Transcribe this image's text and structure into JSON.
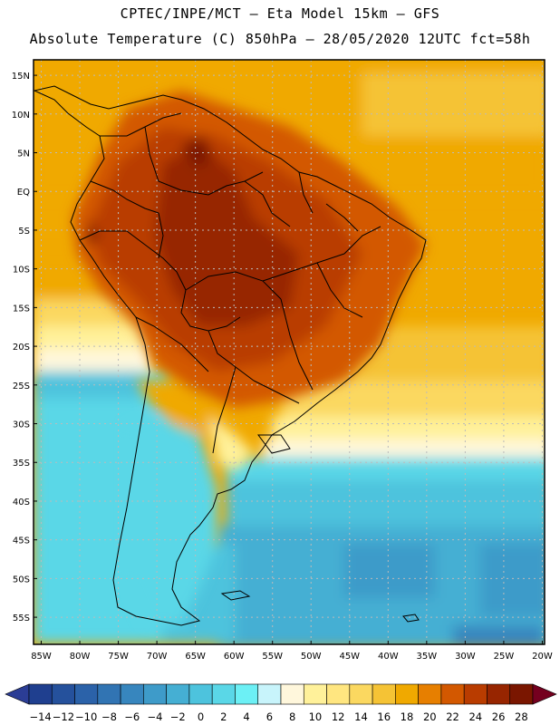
{
  "header": {
    "line1": "CPTEC/INPE/MCT –  Eta Model 15km – GFS",
    "line2": "Absolute Temperature (C) 850hPa – 28/05/2020 12UTC fct=58h"
  },
  "map": {
    "lat_labels": [
      "15N",
      "10N",
      "5N",
      "EQ",
      "5S",
      "10S",
      "15S",
      "20S",
      "25S",
      "30S",
      "35S",
      "40S",
      "45S",
      "50S",
      "55S"
    ],
    "lon_labels": [
      "85W",
      "80W",
      "75W",
      "70W",
      "65W",
      "60W",
      "55W",
      "50W",
      "45W",
      "40W",
      "35W",
      "30W",
      "25W",
      "20W"
    ]
  },
  "colorbar": {
    "labels": [
      "-14",
      "-12",
      "-10",
      "-8",
      "-6",
      "-4",
      "-2",
      "0",
      "2",
      "4",
      "6",
      "8",
      "10",
      "12",
      "14",
      "16",
      "18",
      "20",
      "22",
      "24",
      "26",
      "28"
    ],
    "colors": [
      "#1f3f8f",
      "#25519c",
      "#2b62a9",
      "#3174b3",
      "#3786be",
      "#3e9bc9",
      "#45afd3",
      "#4dc3dd",
      "#5ad7e7",
      "#6cf0f5",
      "#c8f4fb",
      "#fff7dc",
      "#fff19a",
      "#ffe680",
      "#fbd860",
      "#f5c335",
      "#f0a900",
      "#e77f00",
      "#d35800",
      "#b93c00",
      "#972500",
      "#7a1600"
    ],
    "low_color": "#2b3d95",
    "high_color": "#75001f"
  },
  "colors": {
    "ocean_warm": "#f0a900",
    "ocean_warm2": "#f5c335",
    "ocean_mid": "#fbd860",
    "ocean_cool": "#5ad7e7",
    "ocean_cold": "#3e9bc9",
    "land_hot": "#b93c00",
    "land_very_hot": "#972500",
    "border": "#000000"
  }
}
